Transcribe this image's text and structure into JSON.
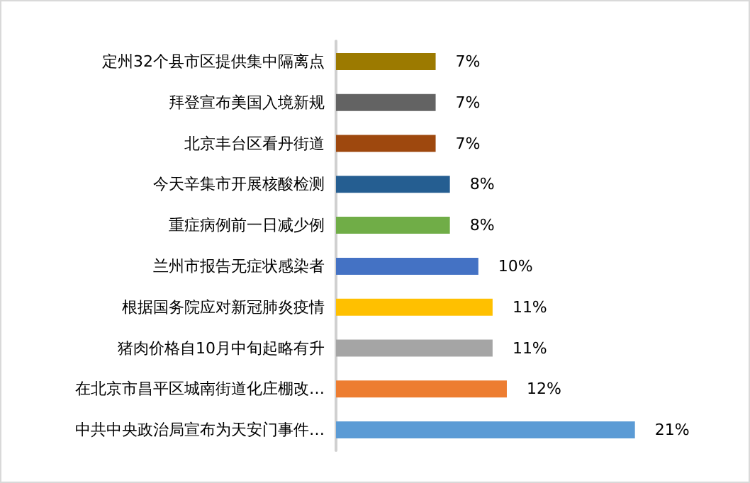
{
  "chart_data": {
    "type": "bar",
    "orientation": "horizontal",
    "categories": [
      "定州32个县市区提供集中隔离点",
      "拜登宣布美国入境新规",
      "北京丰台区看丹街道",
      "今天辛集市开展核酸检测",
      "重症病例前一日减少例",
      "兰州市报告无症状感染者",
      "根据国务院应对新冠肺炎疫情",
      "猪肉价格自10月中旬起略有升",
      "在北京市昌平区城南街道化庄棚改…",
      "中共中央政治局宣布为天安门事件…"
    ],
    "values": [
      7,
      7,
      7,
      8,
      8,
      10,
      11,
      11,
      12,
      21
    ],
    "colors": [
      "#9c7a00",
      "#636363",
      "#9e480e",
      "#255e91",
      "#70ad47",
      "#4472c4",
      "#ffc000",
      "#a5a5a5",
      "#ed7d31",
      "#5b9bd5"
    ],
    "value_labels": [
      "7%",
      "7%",
      "7%",
      "8%",
      "8%",
      "10%",
      "11%",
      "11%",
      "12%",
      "21%"
    ]
  }
}
